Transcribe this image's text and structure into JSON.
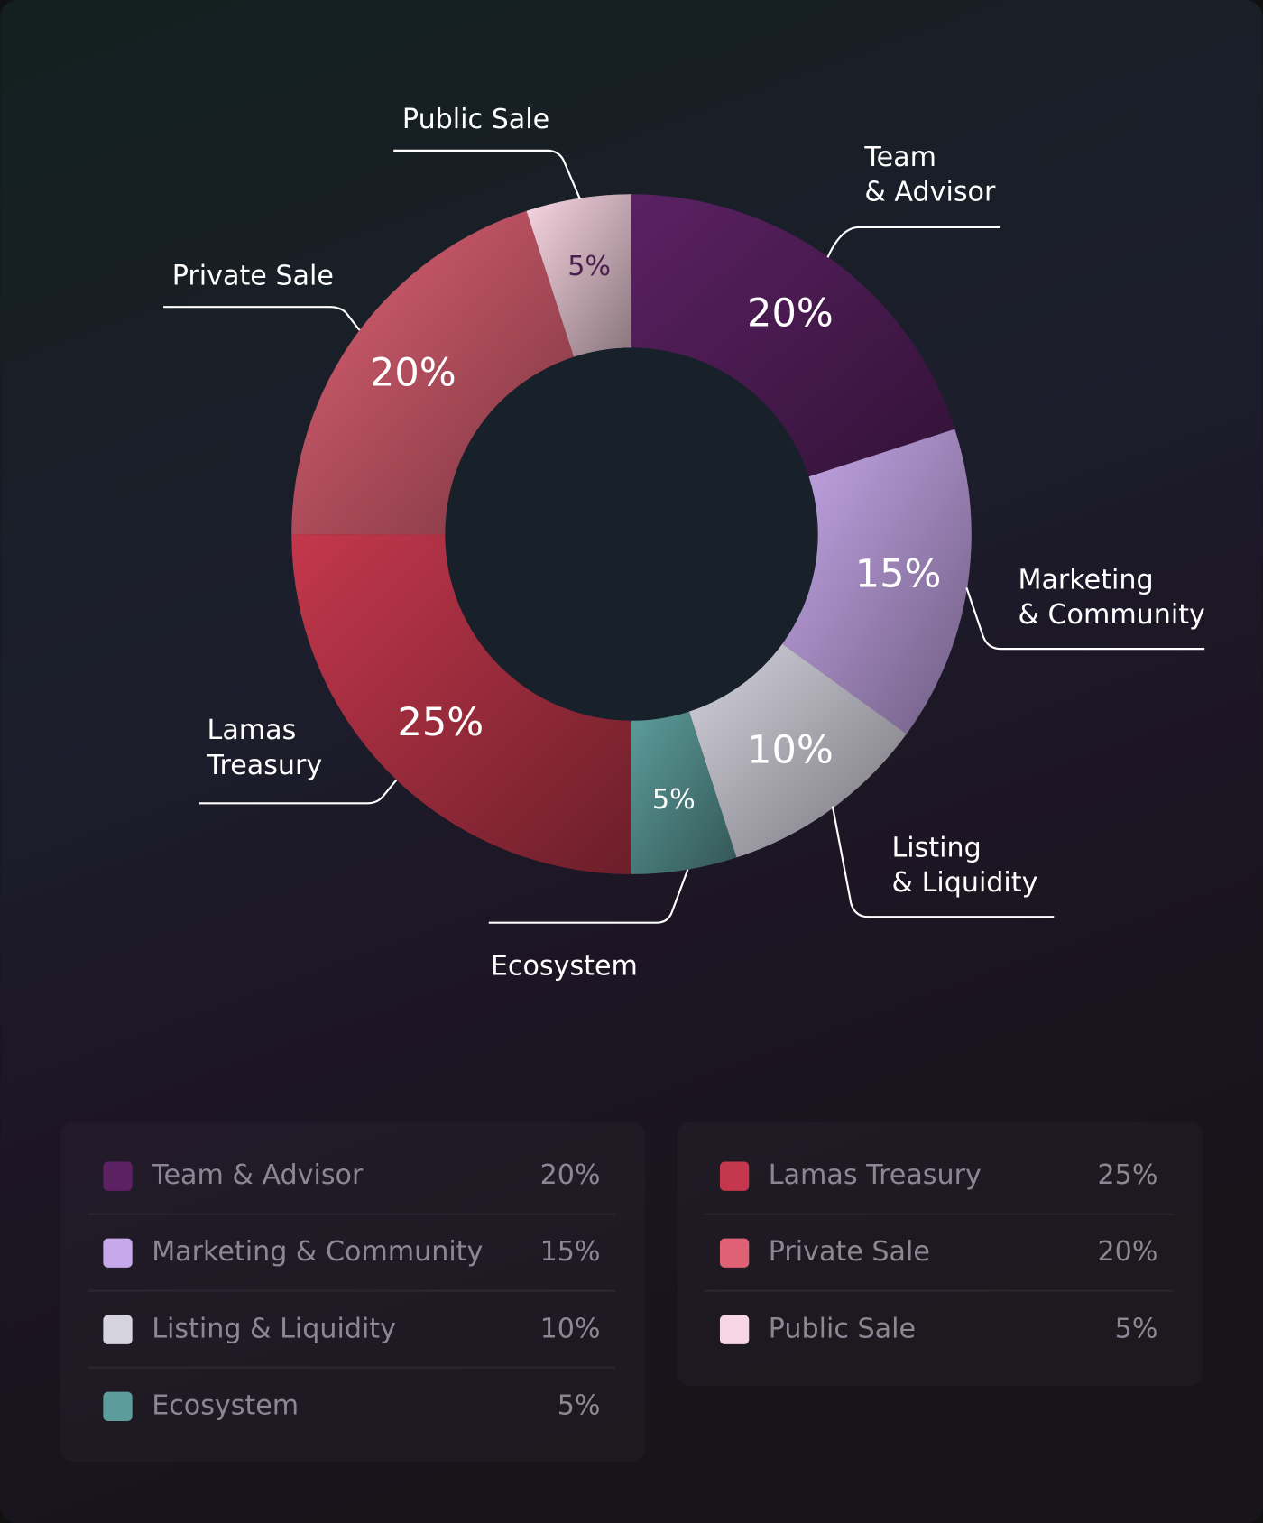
{
  "chart_data": {
    "type": "donut",
    "categories": [
      "Team & Advisor",
      "Marketing & Community",
      "Listing & Liquidity",
      "Ecosystem",
      "Lamas Treasury",
      "Private Sale",
      "Public Sale"
    ],
    "callout_labels": [
      [
        "Team",
        "& Advisor"
      ],
      [
        "Marketing",
        "& Community"
      ],
      [
        "Listing",
        "& Liquidity"
      ],
      [
        "Ecosystem"
      ],
      [
        "Lamas",
        "Treasury"
      ],
      [
        "Private Sale"
      ],
      [
        "Public Sale"
      ]
    ],
    "values": [
      20,
      15,
      10,
      5,
      25,
      20,
      5
    ],
    "value_labels": [
      "20%",
      "15%",
      "10%",
      "5%",
      "25%",
      "20%",
      "5%"
    ],
    "colors": [
      "#5b2163",
      "#c7a8ea",
      "#d5d3de",
      "#5c9c9a",
      "#c4374c",
      "#de6174",
      "#f8d5e2"
    ]
  }
}
